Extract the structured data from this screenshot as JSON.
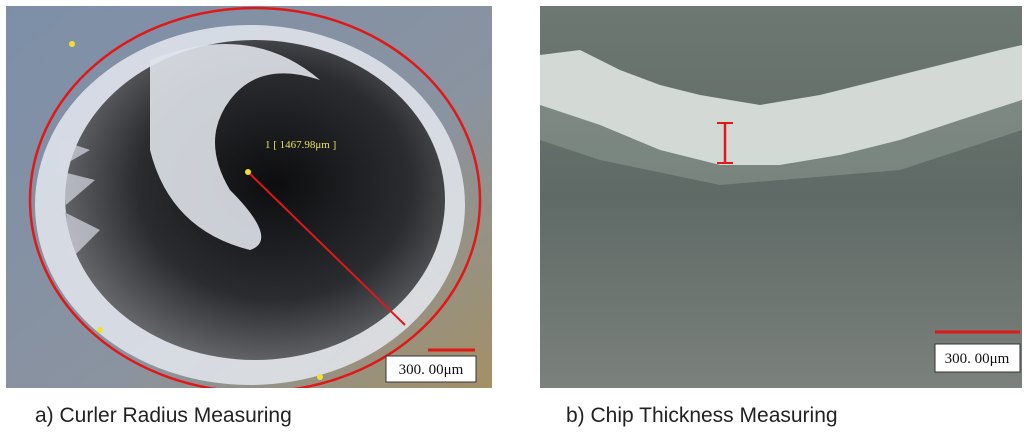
{
  "panels": [
    {
      "caption": "a) Curler Radius Measuring",
      "measurement": "1 [ 1467.98μm ]",
      "scale_bar": "300. 00μm"
    },
    {
      "caption": "b) Chip Thickness Measuring",
      "scale_bar": "300. 00μm"
    }
  ]
}
